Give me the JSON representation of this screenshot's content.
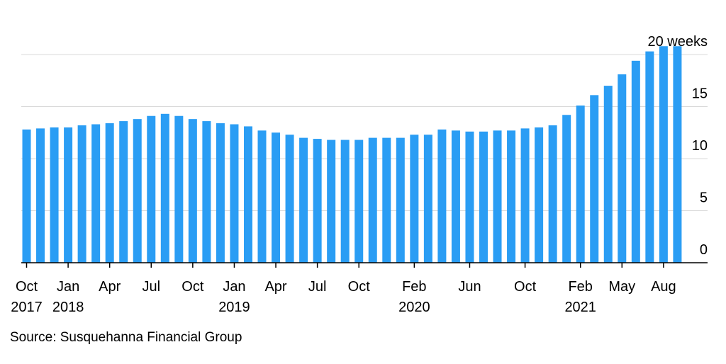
{
  "chart_data": {
    "type": "bar",
    "unit_label": "20 weeks",
    "ylim": [
      0,
      20
    ],
    "y_ticks": [
      "0",
      "5",
      "10",
      "15"
    ],
    "bar_color": "#2A9DF4",
    "grid": true,
    "y_axis_side": "right",
    "x_tick_labels": [
      {
        "index": 0,
        "lines": [
          "Oct",
          "2017"
        ]
      },
      {
        "index": 3,
        "lines": [
          "Jan",
          "2018"
        ]
      },
      {
        "index": 6,
        "lines": [
          "Apr",
          ""
        ]
      },
      {
        "index": 9,
        "lines": [
          "Jul",
          ""
        ]
      },
      {
        "index": 12,
        "lines": [
          "Oct",
          ""
        ]
      },
      {
        "index": 15,
        "lines": [
          "Jan",
          "2019"
        ]
      },
      {
        "index": 18,
        "lines": [
          "Apr",
          ""
        ]
      },
      {
        "index": 21,
        "lines": [
          "Jul",
          ""
        ]
      },
      {
        "index": 24,
        "lines": [
          "Oct",
          ""
        ]
      },
      {
        "index": 28,
        "lines": [
          "Feb",
          "2020"
        ]
      },
      {
        "index": 32,
        "lines": [
          "Jun",
          ""
        ]
      },
      {
        "index": 36,
        "lines": [
          "Oct",
          ""
        ]
      },
      {
        "index": 40,
        "lines": [
          "Feb",
          "2021"
        ]
      },
      {
        "index": 43,
        "lines": [
          "May",
          ""
        ]
      },
      {
        "index": 46,
        "lines": [
          "Aug",
          ""
        ]
      }
    ],
    "values": [
      12.8,
      12.9,
      13.0,
      13.0,
      13.2,
      13.3,
      13.4,
      13.6,
      13.8,
      14.1,
      14.3,
      14.1,
      13.8,
      13.6,
      13.4,
      13.3,
      13.1,
      12.7,
      12.5,
      12.3,
      12.0,
      11.9,
      11.8,
      11.8,
      11.8,
      12.0,
      12.0,
      12.0,
      12.3,
      12.3,
      12.8,
      12.7,
      12.6,
      12.6,
      12.7,
      12.7,
      12.9,
      13.0,
      13.2,
      14.2,
      15.1,
      16.1,
      17.0,
      18.1,
      19.4,
      20.3,
      20.8,
      20.8
    ]
  },
  "source": "Source: Susquehanna Financial Group"
}
